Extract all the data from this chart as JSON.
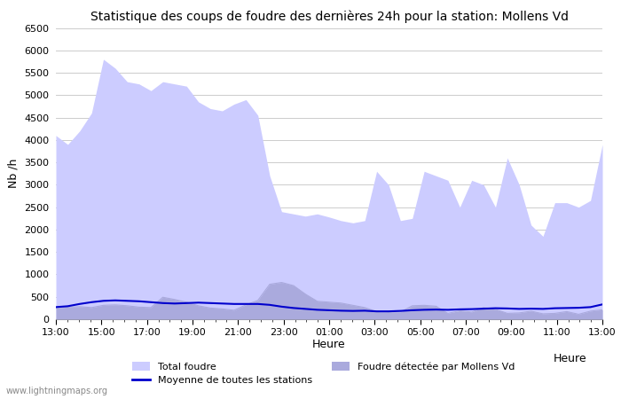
{
  "title": "Statistique des coups de foudre des dernières 24h pour la station: Mollens Vd",
  "ylabel": "Nb /h",
  "xlabel": "Heure",
  "watermark": "www.lightningmaps.org",
  "x_tick_labels": [
    "13:00",
    "15:00",
    "17:00",
    "19:00",
    "21:00",
    "23:00",
    "01:00",
    "03:00",
    "05:00",
    "07:00",
    "09:00",
    "11:00",
    "13:00"
  ],
  "ylim": [
    0,
    6500
  ],
  "yticks": [
    0,
    500,
    1000,
    1500,
    2000,
    2500,
    3000,
    3500,
    4000,
    4500,
    5000,
    5500,
    6000,
    6500
  ],
  "total_foudre_color": "#ccccff",
  "local_foudre_color": "#aaaadd",
  "moyenne_color": "#0000cc",
  "bg_color": "#ffffff",
  "grid_color": "#cccccc",
  "total_foudre": [
    4100,
    3900,
    4200,
    4600,
    5800,
    5600,
    5300,
    5250,
    5100,
    5300,
    5250,
    5200,
    4850,
    4700,
    4650,
    4800,
    4900,
    4550,
    3200,
    2400,
    2350,
    2300,
    2350,
    2280,
    2200,
    2150,
    2200,
    3300,
    3000,
    2200,
    2250,
    3300,
    3200,
    3100,
    2500,
    3100,
    3000,
    2500,
    3600,
    3000,
    2100,
    1850,
    2600,
    2600,
    2500,
    2650,
    3900
  ],
  "local_foudre": [
    250,
    270,
    280,
    260,
    310,
    320,
    300,
    270,
    260,
    490,
    440,
    380,
    300,
    250,
    230,
    200,
    320,
    420,
    780,
    820,
    750,
    560,
    400,
    380,
    360,
    310,
    260,
    170,
    150,
    160,
    300,
    310,
    290,
    130,
    190,
    160,
    260,
    220,
    130,
    140,
    180,
    120,
    130,
    170,
    110,
    180,
    210
  ],
  "moyenne": [
    270,
    290,
    340,
    380,
    410,
    420,
    410,
    400,
    380,
    360,
    350,
    360,
    370,
    360,
    350,
    340,
    340,
    340,
    320,
    280,
    250,
    230,
    210,
    200,
    190,
    185,
    190,
    175,
    175,
    185,
    200,
    210,
    215,
    210,
    220,
    225,
    235,
    245,
    240,
    230,
    235,
    230,
    245,
    250,
    255,
    270,
    330
  ],
  "n_points": 47,
  "n_minor_ticks": 48,
  "legend_total_label": "Total foudre",
  "legend_moyenne_label": "Moyenne de toutes les stations",
  "legend_local_label": "Foudre détectée par Mollens Vd"
}
